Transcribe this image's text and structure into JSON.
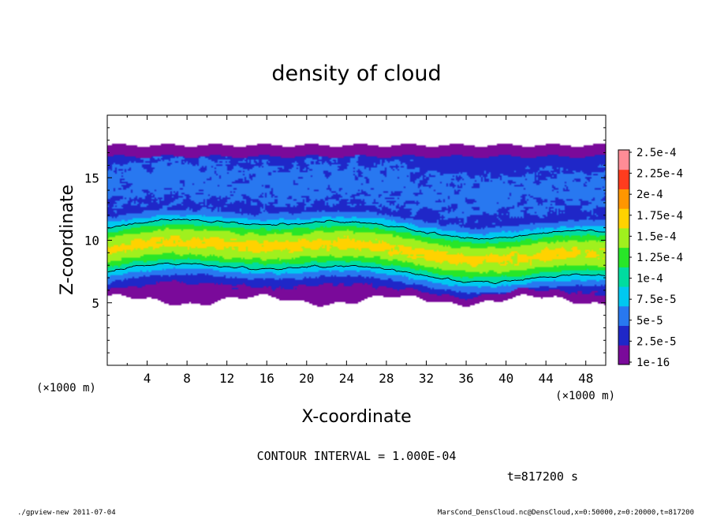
{
  "chart_data": {
    "type": "heatmap",
    "title": "density of cloud",
    "xlabel": "X-coordinate",
    "ylabel": "Z-coordinate",
    "x_unit_left": "(×1000 m)",
    "x_unit_right": "(×1000 m)",
    "xlim": [
      0,
      50
    ],
    "ylim": [
      0,
      20
    ],
    "x_ticks": [
      4,
      8,
      12,
      16,
      20,
      24,
      28,
      32,
      36,
      40,
      44,
      48
    ],
    "y_ticks": [
      5,
      10,
      15
    ],
    "colorbar": {
      "labels": [
        "2.5e-4",
        "2.25e-4",
        "2e-4",
        "1.75e-4",
        "1.5e-4",
        "1.25e-4",
        "1e-4",
        "7.5e-5",
        "5e-5",
        "2.5e-5",
        "1e-16"
      ],
      "levels": [
        1e-16,
        2.5e-05,
        5e-05,
        7.5e-05,
        0.0001,
        0.000125,
        0.00015,
        0.000175,
        0.0002,
        0.000225,
        0.00025
      ],
      "colors": [
        "#7a0a9a",
        "#1f27c8",
        "#2878f0",
        "#00c8f0",
        "#00dca0",
        "#28e628",
        "#a0f01e",
        "#ffd200",
        "#ff9600",
        "#ff3c1e",
        "#ff8c96"
      ]
    },
    "field": {
      "cloud_bottom_z": 5.2,
      "cloud_top_z": 17.6,
      "max_density_z": 9.2,
      "max_density": 0.00018,
      "contour_level": 0.0001
    },
    "contour_interval": "CONTOUR INTERVAL = 1.000E-04",
    "time": "t=817200 s",
    "grid": false
  },
  "footer": {
    "left": "./gpview-new   2011-07-04",
    "right": "MarsCond_DensCloud.nc@DensCloud,x=0:50000,z=0:20000,t=817200"
  }
}
